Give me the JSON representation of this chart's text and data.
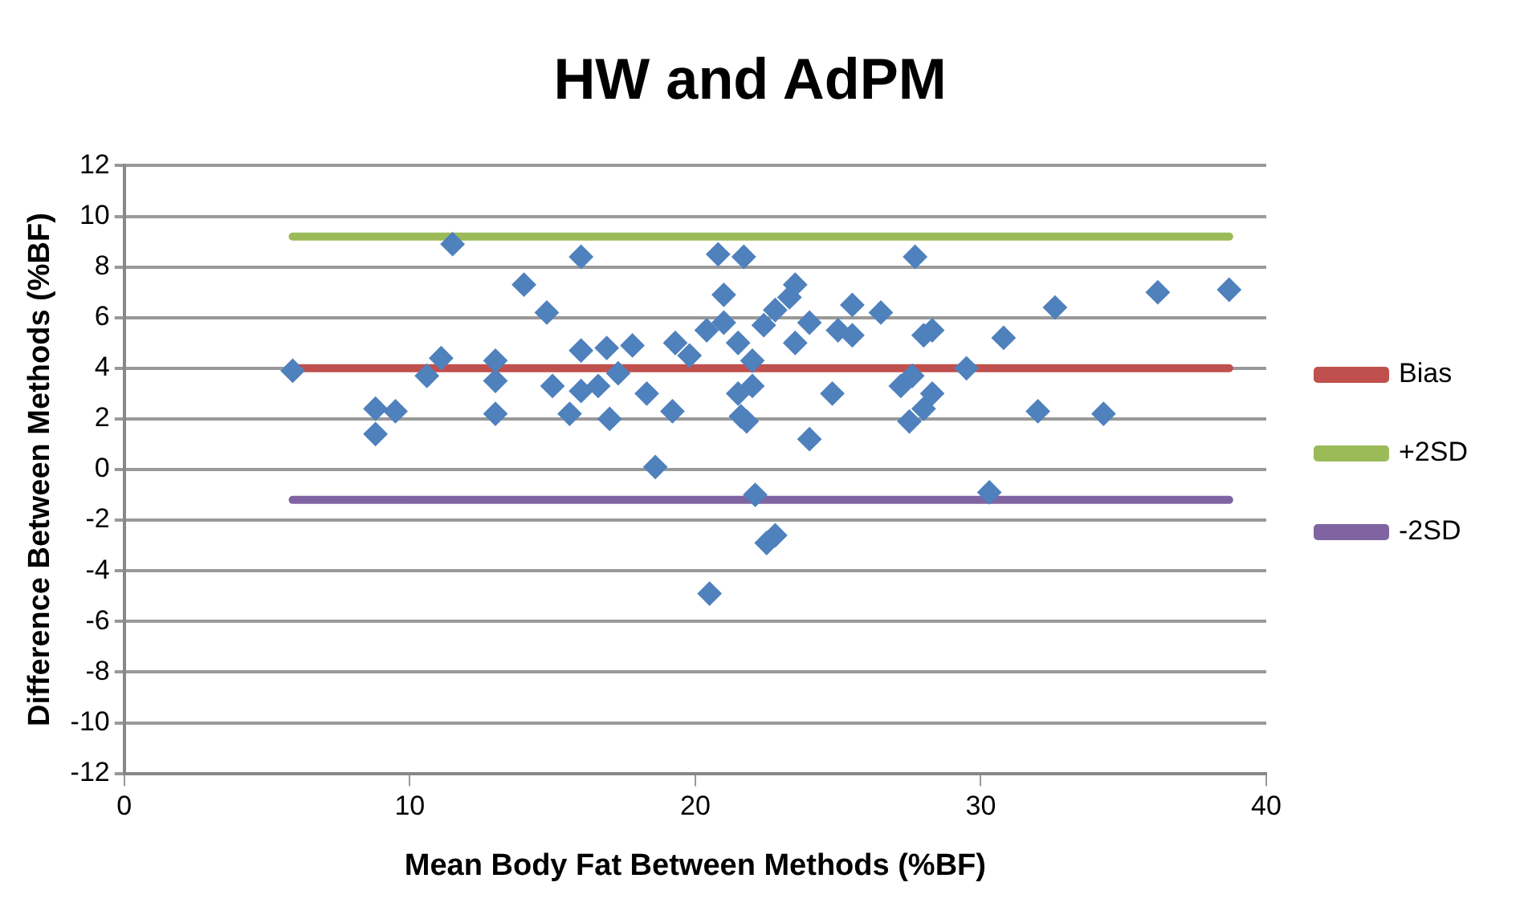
{
  "chart_data": {
    "type": "scatter",
    "title": "HW and AdPM",
    "xlabel": "Mean Body Fat Between Methods (%BF)",
    "ylabel": "Difference Between Methods (%BF)",
    "xlim": [
      0,
      40
    ],
    "xticks": [
      0,
      10,
      20,
      30,
      40
    ],
    "ylim": [
      -12,
      12
    ],
    "yticks": [
      -12,
      -10,
      -8,
      -6,
      -4,
      -2,
      0,
      2,
      4,
      6,
      8,
      10,
      12
    ],
    "grid": "y",
    "legend": "right",
    "series": [
      {
        "type": "scatter",
        "color": "#4f81bd",
        "marker": "diamond",
        "x": [
          5.9,
          8.8,
          8.8,
          9.5,
          10.6,
          11.1,
          11.5,
          14.0,
          13.0,
          13.0,
          13.0,
          14.8,
          15.0,
          15.6,
          16.0,
          16.0,
          16.0,
          16.6,
          16.9,
          17.0,
          17.3,
          17.8,
          18.3,
          18.6,
          19.2,
          19.3,
          19.8,
          20.4,
          20.5,
          20.8,
          21.0,
          21.0,
          21.5,
          21.5,
          21.6,
          21.7,
          21.8,
          22.0,
          22.0,
          22.1,
          22.4,
          22.5,
          22.8,
          22.8,
          23.3,
          23.5,
          23.5,
          24.0,
          24.0,
          24.8,
          25.0,
          25.5,
          25.5,
          26.5,
          27.2,
          27.5,
          27.6,
          27.7,
          28.0,
          28.0,
          28.3,
          28.3,
          29.5,
          30.3,
          30.8,
          32.0,
          32.6,
          34.3,
          36.2,
          38.7
        ],
        "values": [
          3.9,
          2.4,
          1.4,
          2.3,
          3.7,
          4.4,
          8.9,
          7.3,
          4.3,
          3.5,
          2.2,
          6.2,
          3.3,
          2.2,
          8.4,
          4.7,
          3.1,
          3.3,
          4.8,
          2.0,
          3.8,
          4.9,
          3.0,
          0.1,
          2.3,
          5.0,
          4.5,
          5.5,
          -4.9,
          8.5,
          6.9,
          5.8,
          5.0,
          3.0,
          2.1,
          8.4,
          1.9,
          4.3,
          3.3,
          -1.0,
          5.7,
          -2.9,
          -2.6,
          6.3,
          6.8,
          7.3,
          5.0,
          5.8,
          1.2,
          3.0,
          5.5,
          6.5,
          5.3,
          6.2,
          3.3,
          1.9,
          3.7,
          8.4,
          5.3,
          2.4,
          5.5,
          3.0,
          4.0,
          -0.9,
          5.2,
          2.3,
          6.4,
          2.2,
          7.0,
          7.1
        ]
      },
      {
        "type": "line",
        "name": "Bias",
        "color": "#c0504d",
        "marker": "none",
        "x": [
          5.9,
          38.7
        ],
        "values": [
          4.0,
          4.0
        ]
      },
      {
        "type": "line",
        "name": "+2SD",
        "color": "#9bbb59",
        "marker": "none",
        "x": [
          5.9,
          38.7
        ],
        "values": [
          9.2,
          9.2
        ]
      },
      {
        "type": "line",
        "name": "-2SD",
        "color": "#8064a2",
        "marker": "none",
        "x": [
          5.9,
          38.7
        ],
        "values": [
          -1.2,
          -1.2
        ]
      }
    ]
  }
}
